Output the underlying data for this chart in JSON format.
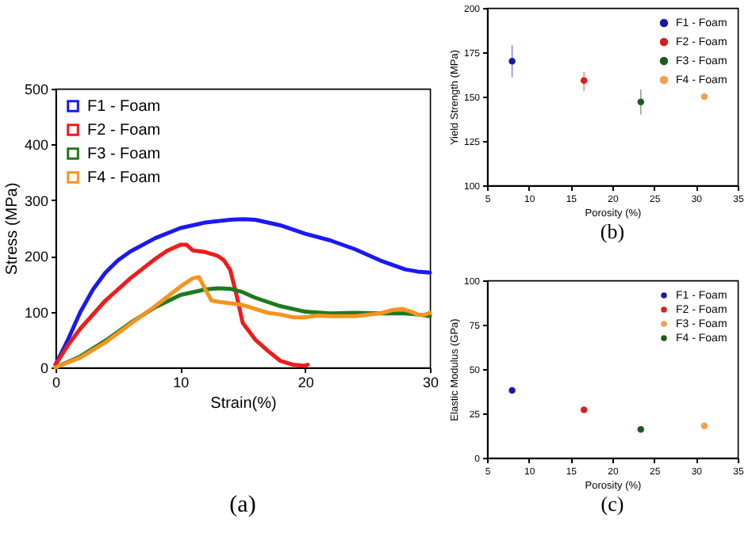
{
  "chart_data": [
    {
      "type": "line",
      "title": "(a)",
      "xlabel": "Strain(%)",
      "ylabel": "Stress (MPa)",
      "xlim": [
        0,
        30
      ],
      "ylim": [
        0,
        500
      ],
      "xticks": [
        0,
        10,
        20,
        30
      ],
      "yticks": [
        0,
        100,
        200,
        300,
        400,
        500
      ],
      "grid": false,
      "legend": "top left",
      "marker": "none",
      "line_style": "solid",
      "series": [
        {
          "name": "F1 - Foam",
          "color": "#1a1aee",
          "x": [
            0,
            1,
            2,
            3,
            4,
            5,
            6,
            8,
            10,
            12,
            14,
            15,
            16,
            18,
            20,
            22,
            24,
            26,
            28,
            29,
            30
          ],
          "values": [
            5,
            50,
            100,
            140,
            170,
            192,
            208,
            232,
            250,
            260,
            265,
            266,
            265,
            255,
            240,
            228,
            212,
            192,
            176,
            172,
            170
          ]
        },
        {
          "name": "F2 - Foam",
          "color": "#ee1c1c",
          "x": [
            0,
            1,
            2,
            4,
            6,
            8,
            9,
            10,
            10.5,
            11,
            12,
            13,
            13.5,
            14,
            14.5,
            15,
            15.5,
            16,
            17,
            18,
            19,
            20,
            20.2
          ],
          "values": [
            5,
            40,
            70,
            120,
            160,
            195,
            210,
            220,
            220,
            210,
            207,
            200,
            192,
            175,
            130,
            80,
            65,
            50,
            30,
            12,
            5,
            3,
            5
          ]
        },
        {
          "name": "F3 - Foam",
          "color": "#1e7a1e",
          "x": [
            0,
            2,
            4,
            6,
            8,
            10,
            12,
            13,
            14,
            15,
            16,
            18,
            20,
            22,
            24,
            26,
            28,
            29,
            30
          ],
          "values": [
            0,
            20,
            48,
            80,
            108,
            130,
            140,
            142,
            141,
            135,
            125,
            110,
            100,
            97,
            98,
            97,
            97,
            95,
            92
          ]
        },
        {
          "name": "F4 - Foam",
          "color": "#f7931e",
          "x": [
            0,
            2,
            4,
            6,
            8,
            10,
            11,
            11.5,
            12,
            12.5,
            13,
            14,
            15,
            16,
            17,
            18,
            19,
            20,
            21,
            22,
            24,
            26,
            27,
            27.8,
            28.5,
            29,
            29.5,
            30
          ],
          "values": [
            0,
            18,
            45,
            78,
            110,
            145,
            160,
            162,
            140,
            120,
            118,
            115,
            112,
            105,
            98,
            95,
            90,
            90,
            93,
            92,
            92,
            97,
            103,
            105,
            100,
            95,
            94,
            98
          ]
        }
      ]
    },
    {
      "type": "scatter",
      "title": "(b)",
      "xlabel": "Porosity (%)",
      "ylabel": "Yield Strength (MPa)",
      "xlim": [
        5,
        35
      ],
      "ylim": [
        100,
        200
      ],
      "xticks": [
        5,
        10,
        15,
        20,
        25,
        30,
        35
      ],
      "yticks": [
        100,
        125,
        150,
        175,
        200
      ],
      "grid": false,
      "legend": "top right",
      "marker": "circle",
      "series": [
        {
          "name": "F1 - Foam",
          "color": "#1a1aa6",
          "x": [
            8
          ],
          "values": [
            170
          ],
          "errors": [
            [
              161,
              179
            ]
          ]
        },
        {
          "name": "F2 - Foam",
          "color": "#d42020",
          "x": [
            16.6
          ],
          "values": [
            159
          ],
          "errors": [
            [
              153,
              164
            ]
          ]
        },
        {
          "name": "F3 - Foam",
          "color": "#1e5a1e",
          "x": [
            23.4
          ],
          "values": [
            147
          ],
          "errors": [
            [
              140,
              154
            ]
          ]
        },
        {
          "name": "F4 - Foam",
          "color": "#f0a050",
          "x": [
            31
          ],
          "values": [
            150
          ]
        }
      ]
    },
    {
      "type": "scatter",
      "title": "(c)",
      "xlabel": "Porosity (%)",
      "ylabel": "Elastic Modulus (GPa)",
      "xlim": [
        5,
        35
      ],
      "ylim": [
        0,
        100
      ],
      "xticks": [
        5,
        10,
        15,
        20,
        25,
        30,
        35
      ],
      "yticks": [
        0,
        25,
        50,
        75,
        100
      ],
      "grid": false,
      "legend": "top right",
      "marker": "circle",
      "series": [
        {
          "name": "F1 - Foam",
          "color": "#1a1aa6",
          "x": [
            8
          ],
          "values": [
            38
          ]
        },
        {
          "name": "F2 - Foam",
          "color": "#d42020",
          "x": [
            16.6
          ],
          "values": [
            27
          ]
        },
        {
          "name": "F3 - Foam",
          "color": "#f0a050",
          "x": [
            31
          ],
          "values": [
            18
          ]
        },
        {
          "name": "F4 - Foam",
          "color": "#1e5a1e",
          "x": [
            23.4
          ],
          "values": [
            16
          ]
        }
      ]
    }
  ]
}
